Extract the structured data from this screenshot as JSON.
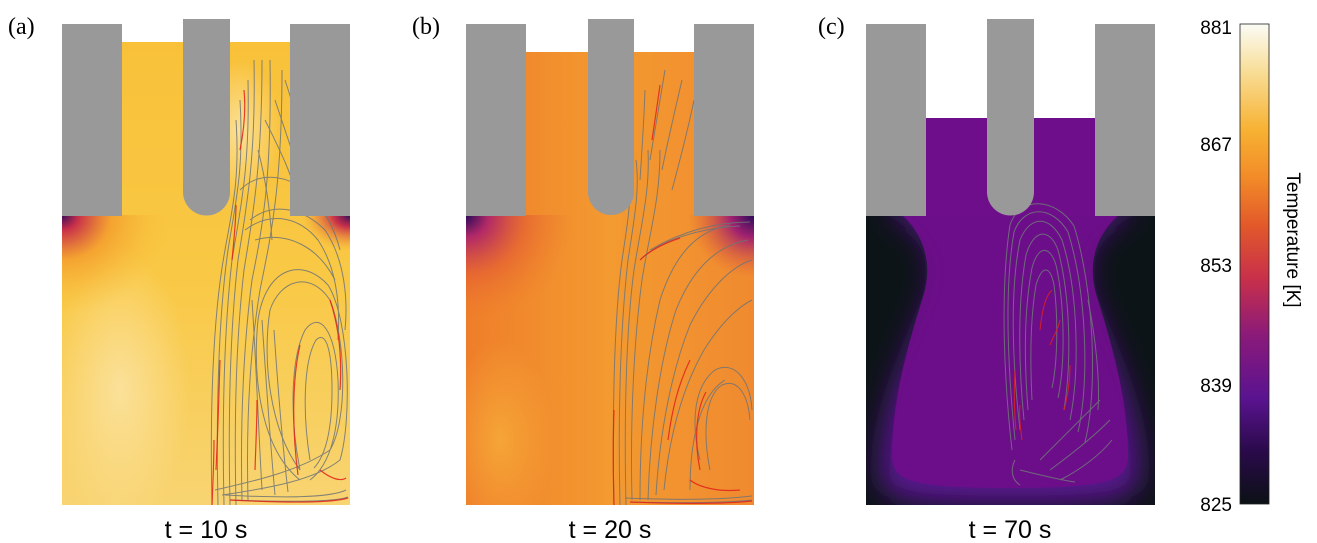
{
  "panels": [
    {
      "label": "(a)",
      "time": "t = 10 s"
    },
    {
      "label": "(b)",
      "time": "t = 20 s"
    },
    {
      "label": "(c)",
      "time": "t = 70 s"
    }
  ],
  "colorbar": {
    "title": "Temperature [K]",
    "ticks": [
      "881",
      "867",
      "853",
      "839",
      "825"
    ],
    "min": 825,
    "max": 881,
    "colors": [
      "#0b1116",
      "#2a0a4a",
      "#5a1390",
      "#8a1a7a",
      "#c8304a",
      "#e2592a",
      "#f28b28",
      "#f7b233",
      "#f8dd96",
      "#fbfcf6"
    ]
  },
  "colors": {
    "electrode": "#999999",
    "streamline": "#6f7478",
    "streamline_red": "#e2231a",
    "melt_a": "#f9c13a",
    "melt_a_light": "#fbdf8c",
    "melt_b": "#f39630",
    "melt_c": "#6e0e8a",
    "cold": "#0d1418"
  }
}
